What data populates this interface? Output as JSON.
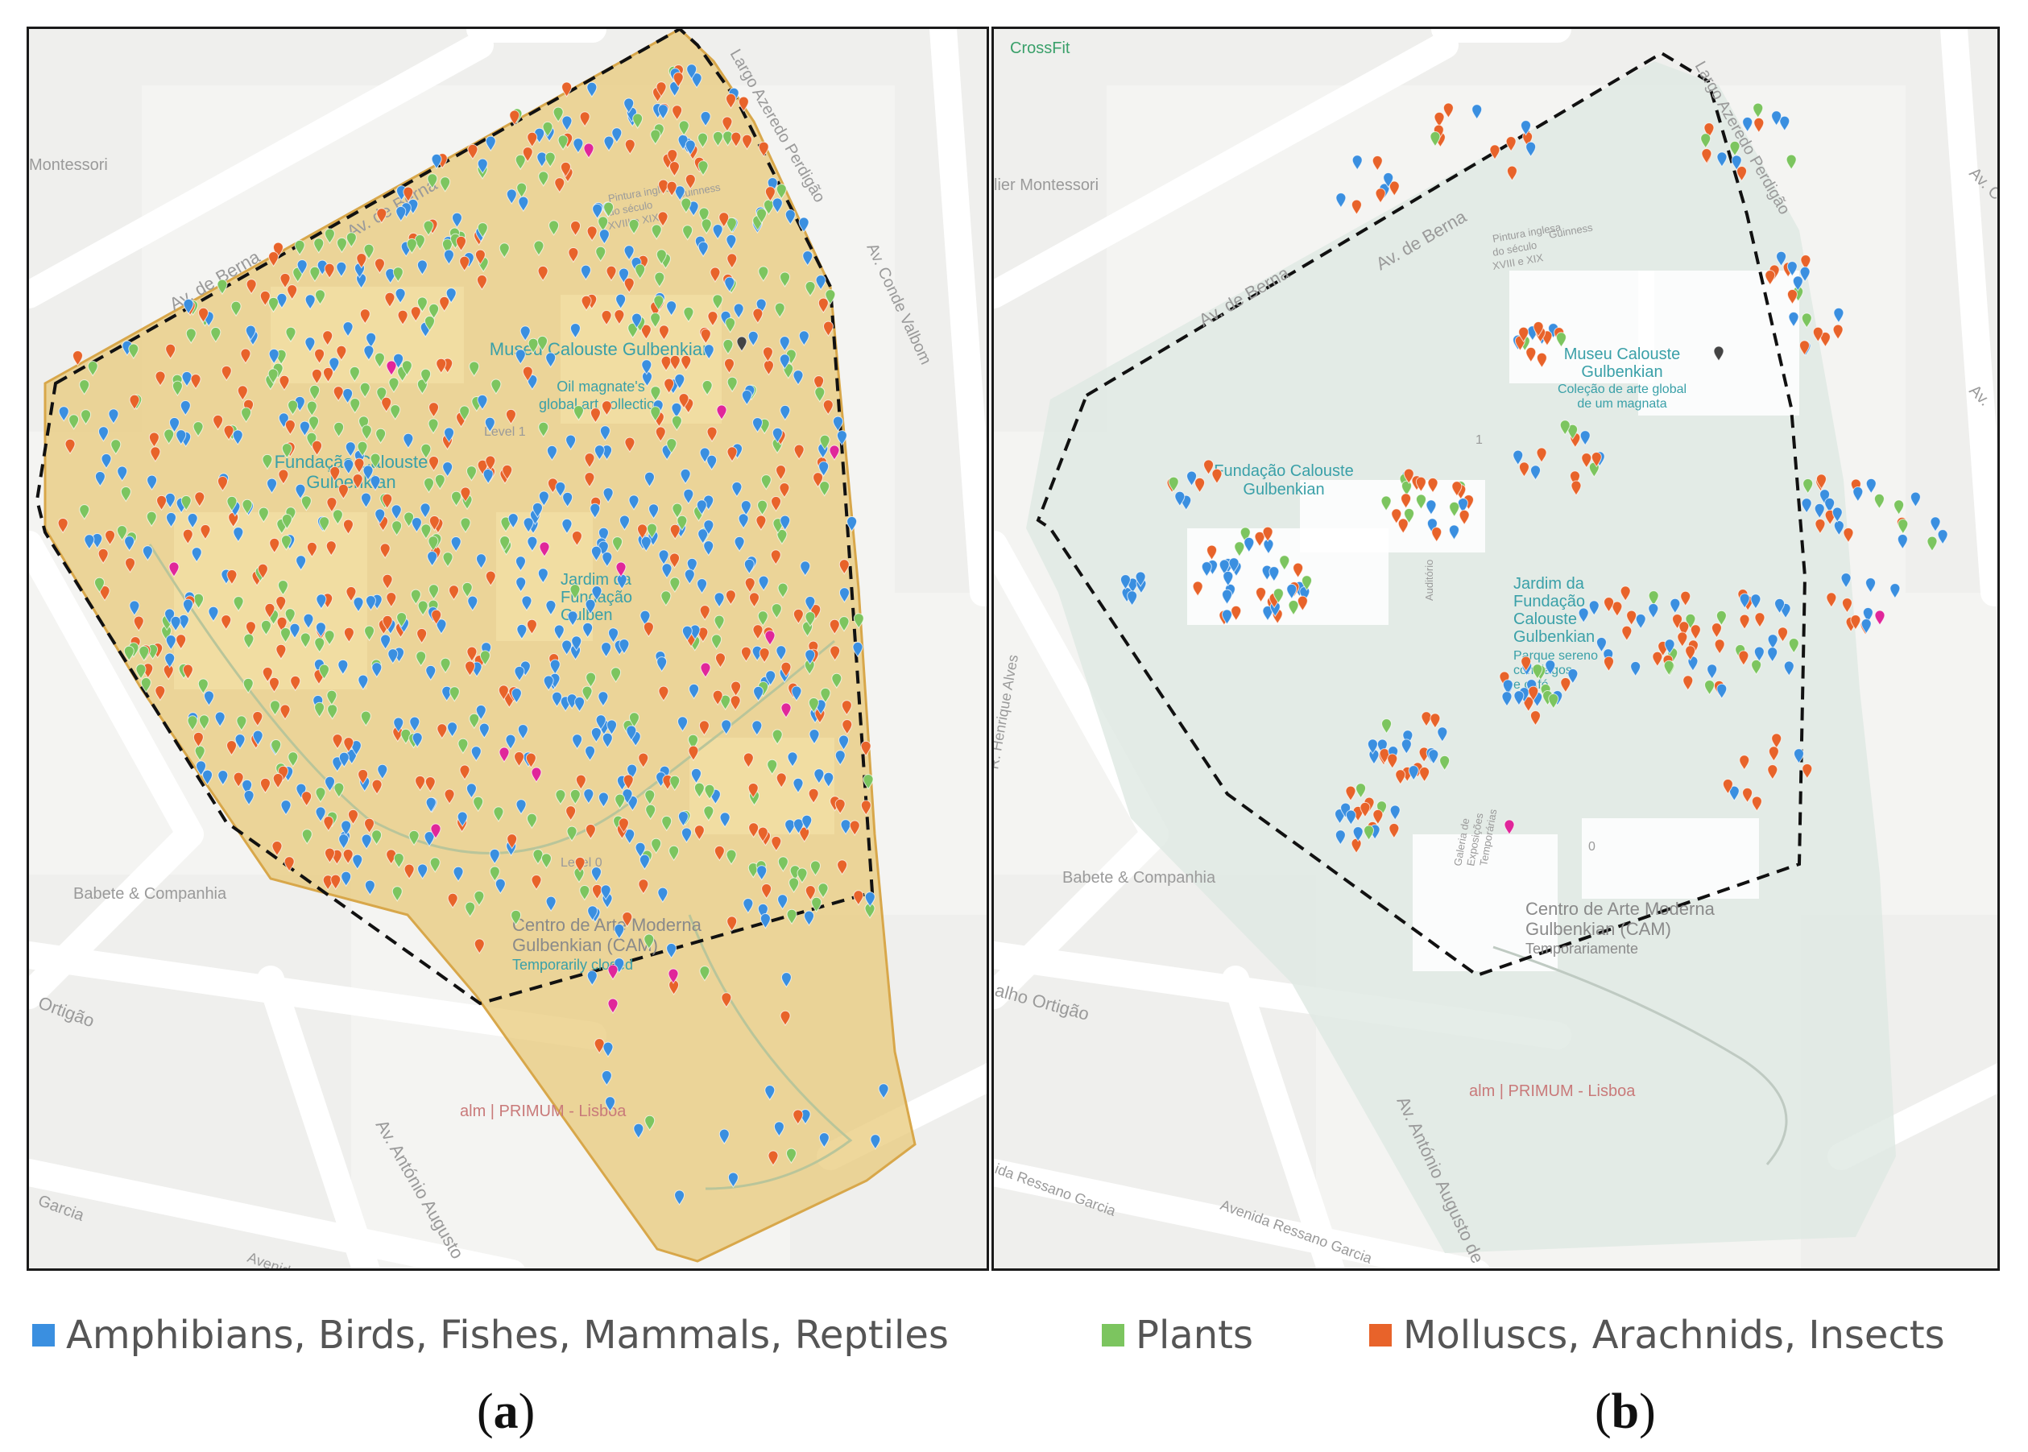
{
  "colors": {
    "vertebrates": "#3a8fe0",
    "plants": "#7cc55f",
    "invertebrates": "#e8632a",
    "magenta": "#e0269a",
    "dark": "#444444",
    "park_fill_a": "#e8c97a",
    "park_fill_b": "#dfe8e2"
  },
  "legend": {
    "vertebrates": "Amphibians, Birds, Fishes, Mammals, Reptiles",
    "plants": "Plants",
    "invertebrates": "Molluscs, Arachnids, Insects"
  },
  "captions": {
    "a": "a",
    "b": "b"
  },
  "panel_a": {
    "streets": [
      "Av. de Berna",
      "Av. de Berna",
      "Av. Conde Valbom",
      "Largo Azeredo Perdigão",
      "Av. António Augusto",
      "Garcia",
      "Avenida",
      "Ortigão"
    ],
    "places": [
      "Montessori",
      "Museu Calouste Gulbenkian",
      "Oil magnate's",
      "global art collection",
      "Fundação Calouste",
      "Gulbenkian",
      "Jardim da",
      "Fundação",
      "Gulben",
      "Centro de Arte Moderna",
      "Gulbenkian (CAM)",
      "Temporarily closed",
      "Babete & Companhia",
      "alm | PRIMUM - Lisboa",
      "Level 1",
      "Level 0",
      "Pintura inglesa",
      "do século",
      "XVIII e XIX",
      "Guinness"
    ],
    "icon": "map-pin-icon"
  },
  "panel_b": {
    "streets": [
      "Av. de Berna",
      "Av. de Berna",
      "Largo Azeredo Perdigão",
      "Av. C",
      "Av.",
      "R. Henrique Alves",
      "alho Ortigão",
      "Av. António Augusto de",
      "Avenida Ressano Garcia",
      "ida Ressano Garcia"
    ],
    "places": [
      "CrossFit",
      "lier Montessori",
      "Museu Calouste",
      "Gulbenkian",
      "Coleção de arte global",
      "de um magnata",
      "Fundação Calouste",
      "Gulbenkian",
      "Jardim da",
      "Fundação",
      "Calouste",
      "Gulbenkian",
      "Parque sereno",
      "com lagos",
      "e café",
      "Centro de Arte Moderna",
      "Gulbenkian (CAM)",
      "Temporariamente",
      "Babete & Companhia",
      "alm | PRIMUM - Lisboa",
      "Pintura inglesa",
      "do século",
      "XVIII e XIX",
      "Guinness",
      "Auditório",
      "Galeria de",
      "Exposições",
      "Temporárias",
      "1",
      "0"
    ],
    "icon": "map-pin-icon"
  }
}
